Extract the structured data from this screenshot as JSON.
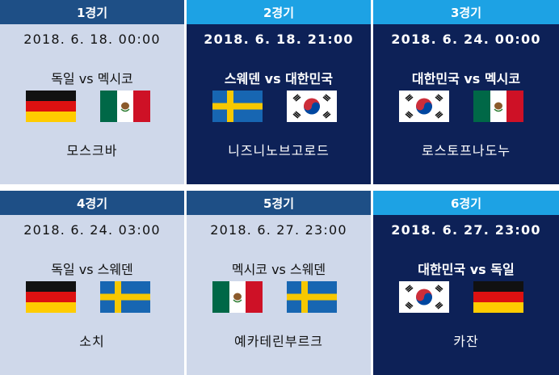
{
  "matches": [
    {
      "label": "1경기",
      "datetime": "2018. 6. 18. 00:00",
      "teams": "독일 vs 멕시코",
      "venue": "모스크바",
      "flag_left": "germany-flag-icon",
      "flag_right": "mexico-flag-icon"
    },
    {
      "label": "2경기",
      "datetime": "2018. 6. 18. 21:00",
      "teams": "스웨덴 vs 대한민국",
      "venue": "니즈니노브고로드",
      "flag_left": "sweden-flag-icon",
      "flag_right": "korea-flag-icon"
    },
    {
      "label": "3경기",
      "datetime": "2018. 6. 24. 00:00",
      "teams": "대한민국 vs 멕시코",
      "venue": "로스토프나도누",
      "flag_left": "korea-flag-icon",
      "flag_right": "mexico-flag-icon"
    },
    {
      "label": "4경기",
      "datetime": "2018. 6. 24. 03:00",
      "teams": "독일 vs 스웨덴",
      "venue": "소치",
      "flag_left": "germany-flag-icon",
      "flag_right": "sweden-flag-icon"
    },
    {
      "label": "5경기",
      "datetime": "2018. 6. 27. 23:00",
      "teams": "멕시코 vs 스웨덴",
      "venue": "예카테린부르크",
      "flag_left": "mexico-flag-icon",
      "flag_right": "sweden-flag-icon"
    },
    {
      "label": "6경기",
      "datetime": "2018. 6. 27. 23:00",
      "teams": "대한민국 vs 독일",
      "venue": "카잔",
      "flag_left": "korea-flag-icon",
      "flag_right": "germany-flag-icon"
    }
  ],
  "colors": {
    "header_default": "#1e4f86",
    "header_korea_match": "#1da2e4",
    "card_default": "#cfd8ea",
    "card_korea_match": "#0d2157"
  }
}
